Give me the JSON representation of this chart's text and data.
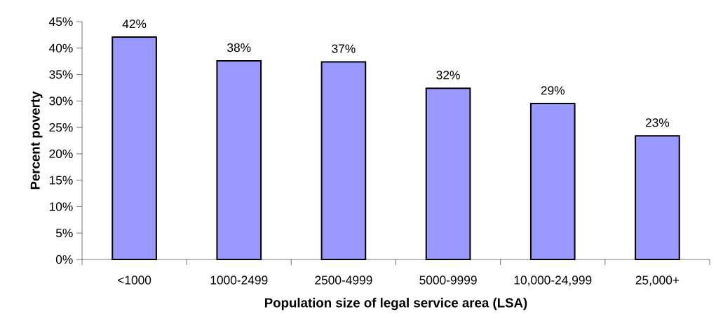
{
  "chart_data": {
    "type": "bar",
    "xlabel": "Population size of legal service area (LSA)",
    "ylabel": "Percent poverty",
    "categories": [
      "<1000",
      "1000-2499",
      "2500-4999",
      "5000-9999",
      "10,000-24,999",
      "25,000+"
    ],
    "values": [
      42.1,
      37.6,
      37.4,
      32.4,
      29.5,
      23.4
    ],
    "value_labels": [
      "42%",
      "38%",
      "37%",
      "32%",
      "29%",
      "23%"
    ],
    "color": "#9999ff",
    "ylim": [
      0,
      45
    ],
    "yticks": [
      {
        "value": 0,
        "label": "0%"
      },
      {
        "value": 5,
        "label": "5%"
      },
      {
        "value": 10,
        "label": "10%"
      },
      {
        "value": 15,
        "label": "15%"
      },
      {
        "value": 20,
        "label": "20%"
      },
      {
        "value": 25,
        "label": "25%"
      },
      {
        "value": 30,
        "label": "30%"
      },
      {
        "value": 35,
        "label": "35%"
      },
      {
        "value": 40,
        "label": "40%"
      },
      {
        "value": 45,
        "label": "45%"
      }
    ]
  }
}
